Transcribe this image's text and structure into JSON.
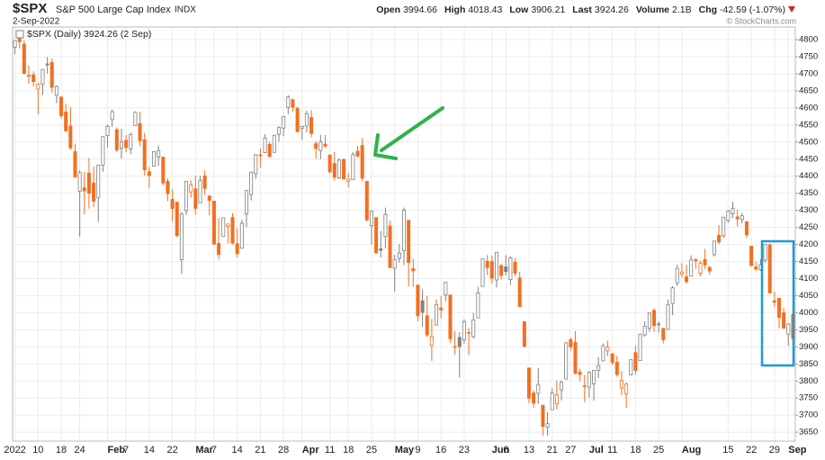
{
  "header": {
    "symbol": "$SPX",
    "name": "S&P 500 Large Cap Index",
    "exchange": "INDX",
    "date": "2-Sep-2022",
    "copyright": "© StockCharts.com",
    "stats": [
      {
        "label": "Open",
        "value": 3994.66
      },
      {
        "label": "High",
        "value": 4018.43
      },
      {
        "label": "Low",
        "value": 3906.21
      },
      {
        "label": "Last",
        "value": 3924.26
      },
      {
        "label": "Volume",
        "value": "2.1B"
      },
      {
        "label": "Chg",
        "value": "-42.59 (-1.07%)"
      }
    ]
  },
  "chart_data": {
    "type": "candlestick",
    "legend": "$SPX (Daily) 3924.26 (2 Sep)",
    "up_color": "#808080",
    "down_color": "#f36f21",
    "grid": true,
    "ylim": [
      3624,
      4837
    ],
    "yticks": [
      3650,
      3700,
      3750,
      3800,
      3850,
      3900,
      3950,
      4000,
      4050,
      4100,
      4150,
      4200,
      4250,
      4300,
      4350,
      4400,
      4450,
      4500,
      4550,
      4600,
      4650,
      4700,
      4750,
      4800
    ],
    "categories": [
      "2022",
      null,
      null,
      null,
      null,
      "10",
      null,
      null,
      null,
      null,
      "18",
      null,
      null,
      null,
      "24",
      null,
      null,
      null,
      null,
      null,
      "Feb",
      null,
      null,
      null,
      "7",
      null,
      null,
      null,
      null,
      "14",
      null,
      null,
      null,
      null,
      "22",
      null,
      null,
      null,
      null,
      "Mar",
      null,
      null,
      null,
      "7",
      null,
      null,
      null,
      null,
      "14",
      null,
      null,
      null,
      null,
      "21",
      null,
      null,
      null,
      null,
      "28",
      null,
      null,
      null,
      "Apr",
      null,
      null,
      null,
      null,
      null,
      "11",
      null,
      null,
      null,
      "18",
      null,
      null,
      null,
      null,
      "25",
      null,
      null,
      null,
      null,
      "May",
      null,
      null,
      null,
      null,
      "9",
      null,
      null,
      null,
      null,
      "16",
      null,
      null,
      null,
      null,
      "23",
      null,
      null,
      null,
      null,
      null,
      "Jun",
      null,
      null,
      "6",
      null,
      null,
      null,
      null,
      "13",
      null,
      null,
      null,
      null,
      "21",
      null,
      null,
      null,
      "27",
      null,
      null,
      null,
      "Jul",
      null,
      null,
      null,
      null,
      "11",
      null,
      null,
      null,
      null,
      "18",
      null,
      null,
      null,
      null,
      "25",
      null,
      null,
      null,
      null,
      "Aug",
      null,
      null,
      null,
      null,
      null,
      null,
      null,
      null,
      null,
      "15",
      null,
      null,
      null,
      null,
      "22",
      null,
      null,
      null,
      null,
      "29",
      null,
      null,
      "Sep",
      null
    ],
    "ohlc": [
      [
        4778,
        4797,
        4758,
        4797
      ],
      [
        4804,
        4819,
        4774,
        4794
      ],
      [
        4787,
        4798,
        4699,
        4701
      ],
      [
        4693,
        4725,
        4671,
        4696
      ],
      [
        4697,
        4707,
        4663,
        4677
      ],
      [
        4655,
        4673,
        4582,
        4670
      ],
      [
        4669,
        4714,
        4638,
        4713
      ],
      [
        4729,
        4749,
        4701,
        4726
      ],
      [
        4733,
        4745,
        4644,
        4660
      ],
      [
        4637,
        4666,
        4614,
        4663
      ],
      [
        4632,
        4632,
        4568,
        4577
      ],
      [
        4588,
        4612,
        4531,
        4533
      ],
      [
        4547,
        4603,
        4477,
        4483
      ],
      [
        4472,
        4495,
        4395,
        4398
      ],
      [
        4356,
        4417,
        4223,
        4410
      ],
      [
        4366,
        4412,
        4288,
        4357
      ],
      [
        4409,
        4453,
        4305,
        4350
      ],
      [
        4380,
        4428,
        4309,
        4327
      ],
      [
        4337,
        4432,
        4266,
        4432
      ],
      [
        4432,
        4517,
        4413,
        4516
      ],
      [
        4519,
        4551,
        4484,
        4546
      ],
      [
        4566,
        4595,
        4544,
        4589
      ],
      [
        4536,
        4543,
        4471,
        4477
      ],
      [
        4482,
        4539,
        4451,
        4500
      ],
      [
        4505,
        4521,
        4471,
        4484
      ],
      [
        4480,
        4528,
        4465,
        4522
      ],
      [
        4548,
        4590,
        4548,
        4587
      ],
      [
        4554,
        4589,
        4488,
        4504
      ],
      [
        4507,
        4527,
        4402,
        4419
      ],
      [
        4413,
        4427,
        4365,
        4402
      ],
      [
        4429,
        4473,
        4429,
        4472
      ],
      [
        4456,
        4490,
        4430,
        4475
      ],
      [
        4456,
        4456,
        4373,
        4380
      ],
      [
        4385,
        4394,
        4327,
        4349
      ],
      [
        4332,
        4362,
        4268,
        4305
      ],
      [
        4324,
        4324,
        4221,
        4226
      ],
      [
        4155,
        4295,
        4114,
        4289
      ],
      [
        4299,
        4385,
        4287,
        4385
      ],
      [
        4354,
        4388,
        4337,
        4374
      ],
      [
        4363,
        4402,
        4288,
        4306
      ],
      [
        4322,
        4401,
        4322,
        4387
      ],
      [
        4401,
        4417,
        4345,
        4364
      ],
      [
        4342,
        4343,
        4285,
        4329
      ],
      [
        4327,
        4328,
        4199,
        4201
      ],
      [
        4203,
        4277,
        4157,
        4171
      ],
      [
        4224,
        4279,
        4224,
        4278
      ],
      [
        4253,
        4261,
        4204,
        4260
      ],
      [
        4279,
        4292,
        4200,
        4204
      ],
      [
        4202,
        4247,
        4162,
        4173
      ],
      [
        4189,
        4272,
        4188,
        4262
      ],
      [
        4289,
        4358,
        4251,
        4358
      ],
      [
        4346,
        4412,
        4329,
        4412
      ],
      [
        4407,
        4465,
        4392,
        4463
      ],
      [
        4462,
        4481,
        4425,
        4461
      ],
      [
        4469,
        4523,
        4469,
        4512
      ],
      [
        4493,
        4501,
        4456,
        4457
      ],
      [
        4470,
        4521,
        4468,
        4520
      ],
      [
        4523,
        4546,
        4501,
        4543
      ],
      [
        4541,
        4576,
        4517,
        4575
      ],
      [
        4602,
        4637,
        4582,
        4632
      ],
      [
        4624,
        4627,
        4588,
        4602
      ],
      [
        4599,
        4604,
        4530,
        4530
      ],
      [
        4540,
        4548,
        4507,
        4546
      ],
      [
        4547,
        4593,
        4528,
        4583
      ],
      [
        4572,
        4594,
        4514,
        4525
      ],
      [
        4495,
        4503,
        4451,
        4481
      ],
      [
        4475,
        4521,
        4450,
        4500
      ],
      [
        4494,
        4521,
        4483,
        4488
      ],
      [
        4462,
        4464,
        4408,
        4413
      ],
      [
        4437,
        4471,
        4387,
        4397
      ],
      [
        4395,
        4453,
        4392,
        4447
      ],
      [
        4449,
        4452,
        4391,
        4392
      ],
      [
        4385,
        4411,
        4367,
        4391
      ],
      [
        4390,
        4471,
        4390,
        4463
      ],
      [
        4473,
        4489,
        4455,
        4459
      ],
      [
        4490,
        4512,
        4385,
        4394
      ],
      [
        4385,
        4385,
        4268,
        4272
      ],
      [
        4255,
        4300,
        4200,
        4297
      ],
      [
        4279,
        4279,
        4175,
        4175
      ],
      [
        4187,
        4240,
        4162,
        4183
      ],
      [
        4223,
        4308,
        4188,
        4288
      ],
      [
        4254,
        4270,
        4132,
        4132
      ],
      [
        4130,
        4169,
        4062,
        4155
      ],
      [
        4159,
        4201,
        4147,
        4175
      ],
      [
        4182,
        4308,
        4139,
        4301
      ],
      [
        4271,
        4271,
        4077,
        4147
      ],
      [
        4129,
        4158,
        4076,
        4123
      ],
      [
        4081,
        4081,
        3975,
        3991
      ],
      [
        4035,
        4068,
        3959,
        4001
      ],
      [
        3991,
        4050,
        3929,
        3935
      ],
      [
        3904,
        3982,
        3859,
        3930
      ],
      [
        3964,
        4039,
        3964,
        4024
      ],
      [
        4014,
        4049,
        3983,
        4008
      ],
      [
        4052,
        4090,
        4034,
        4089
      ],
      [
        4052,
        4052,
        3912,
        3924
      ],
      [
        3900,
        3946,
        3877,
        3901
      ],
      [
        3928,
        3943,
        3810,
        3901
      ],
      [
        3920,
        3981,
        3909,
        3974
      ],
      [
        3942,
        3955,
        3876,
        3941
      ],
      [
        3930,
        3999,
        3925,
        3979
      ],
      [
        3985,
        4076,
        3984,
        4058
      ],
      [
        4077,
        4158,
        4077,
        4158
      ],
      [
        4151,
        4169,
        4110,
        4132
      ],
      [
        4150,
        4167,
        4085,
        4101
      ],
      [
        4096,
        4178,
        4074,
        4177
      ],
      [
        4138,
        4143,
        4097,
        4109
      ],
      [
        4134,
        4169,
        4109,
        4121
      ],
      [
        4097,
        4165,
        4081,
        4161
      ],
      [
        4148,
        4161,
        4107,
        4116
      ],
      [
        4102,
        4120,
        4017,
        4018
      ],
      [
        3974,
        3974,
        3900,
        3901
      ],
      [
        3838,
        3838,
        3735,
        3750
      ],
      [
        3765,
        3772,
        3722,
        3735
      ],
      [
        3764,
        3838,
        3733,
        3790
      ],
      [
        3729,
        3729,
        3640,
        3667
      ],
      [
        3665,
        3708,
        3640,
        3675
      ],
      [
        3716,
        3779,
        3716,
        3765
      ],
      [
        3733,
        3802,
        3717,
        3760
      ],
      [
        3774,
        3802,
        3743,
        3796
      ],
      [
        3806,
        3913,
        3806,
        3912
      ],
      [
        3921,
        3928,
        3889,
        3900
      ],
      [
        3913,
        3946,
        3820,
        3822
      ],
      [
        3826,
        3836,
        3799,
        3819
      ],
      [
        3786,
        3818,
        3738,
        3785
      ],
      [
        3782,
        3829,
        3752,
        3825
      ],
      [
        3792,
        3832,
        3742,
        3831
      ],
      [
        3831,
        3870,
        3809,
        3845
      ],
      [
        3859,
        3910,
        3859,
        3903
      ],
      [
        3888,
        3918,
        3873,
        3899
      ],
      [
        3880,
        3880,
        3847,
        3855
      ],
      [
        3855,
        3874,
        3813,
        3819
      ],
      [
        3779,
        3829,
        3759,
        3802
      ],
      [
        3763,
        3796,
        3722,
        3791
      ],
      [
        3818,
        3863,
        3817,
        3863
      ],
      [
        3883,
        3903,
        3818,
        3831
      ],
      [
        3860,
        3939,
        3860,
        3937
      ],
      [
        3935,
        3975,
        3930,
        3960
      ],
      [
        3955,
        4001,
        3944,
        3999
      ],
      [
        4007,
        4013,
        3944,
        3962
      ],
      [
        3965,
        3975,
        3942,
        3967
      ],
      [
        3954,
        3954,
        3910,
        3921
      ],
      [
        3951,
        4039,
        3951,
        4024
      ],
      [
        4027,
        4078,
        3993,
        4073
      ],
      [
        4087,
        4141,
        4079,
        4130
      ],
      [
        4113,
        4145,
        4103,
        4119
      ],
      [
        4105,
        4141,
        4085,
        4091
      ],
      [
        4107,
        4168,
        4107,
        4155
      ],
      [
        4155,
        4161,
        4129,
        4152
      ],
      [
        4116,
        4152,
        4107,
        4145
      ],
      [
        4156,
        4187,
        4128,
        4140
      ],
      [
        4133,
        4137,
        4112,
        4122
      ],
      [
        4170,
        4211,
        4165,
        4210
      ],
      [
        4227,
        4257,
        4201,
        4207
      ],
      [
        4225,
        4280,
        4219,
        4280
      ],
      [
        4270,
        4301,
        4264,
        4297
      ],
      [
        4290,
        4325,
        4277,
        4305
      ],
      [
        4281,
        4302,
        4253,
        4275
      ],
      [
        4273,
        4292,
        4262,
        4284
      ],
      [
        4267,
        4267,
        4219,
        4228
      ],
      [
        4195,
        4195,
        4136,
        4138
      ],
      [
        4134,
        4149,
        4123,
        4128
      ],
      [
        4126,
        4157,
        4122,
        4141
      ],
      [
        4154,
        4200,
        4147,
        4200
      ],
      [
        4199,
        4203,
        4058,
        4058
      ],
      [
        4035,
        4062,
        4017,
        4031
      ],
      [
        4042,
        4044,
        3955,
        3986
      ],
      [
        4000,
        4015,
        3954,
        3955
      ],
      [
        3936,
        3970,
        3903,
        3967
      ],
      [
        3994.66,
        4018.43,
        3906.21,
        3924.26
      ]
    ]
  }
}
